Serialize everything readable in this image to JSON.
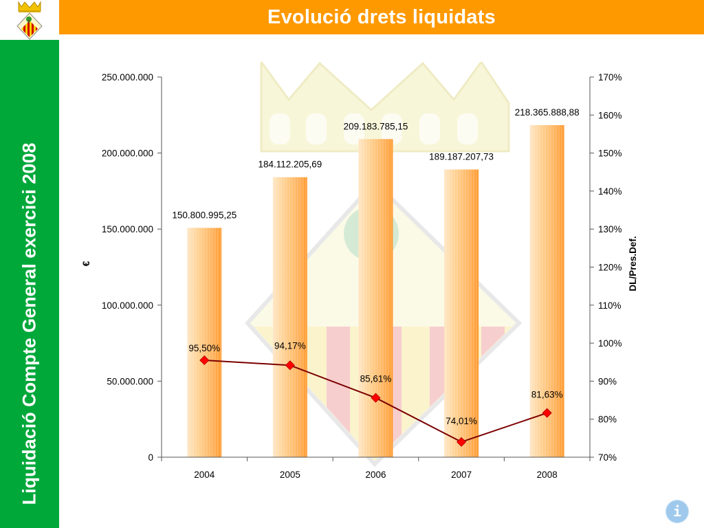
{
  "header": {
    "title": "Evolució drets liquidats"
  },
  "sidebar": {
    "text": "Liquidació Compte General exercici 2008"
  },
  "info_button": {
    "label": "i"
  },
  "colors": {
    "header": "#ff9900",
    "sidebar": "#00a83a",
    "bar_light": "#ffe2b8",
    "bar_dark": "#ff9a2e",
    "line": "#7b0000",
    "marker": "#ff0000"
  },
  "icons": {
    "logo": "coat-of-arms-icon",
    "watermark": "coat-of-arms-watermark",
    "info": "info-icon"
  },
  "chart_data": {
    "type": "bar",
    "categories": [
      "2004",
      "2005",
      "2006",
      "2007",
      "2008"
    ],
    "y_left": {
      "label": "€",
      "min": 0,
      "max": 250000000,
      "step": 50000000,
      "ticks": [
        "0",
        "50.000.000",
        "100.000.000",
        "150.000.000",
        "200.000.000",
        "250.000.000"
      ]
    },
    "y_right": {
      "label": "DL/Pres.Def.",
      "min": 70,
      "max": 170,
      "step": 10,
      "ticks": [
        "70%",
        "80%",
        "90%",
        "100%",
        "110%",
        "120%",
        "130%",
        "140%",
        "150%",
        "160%",
        "170%"
      ]
    },
    "series": [
      {
        "type": "bar",
        "axis": "left",
        "values": [
          150800995.25,
          184112205.69,
          209183785.15,
          189187207.73,
          218365888.88
        ],
        "labels": [
          "150.800.995,25",
          "184.112.205,69",
          "209.183.785,15",
          "189.187.207,73",
          "218.365.888,88"
        ]
      },
      {
        "type": "line",
        "axis": "right",
        "values": [
          95.5,
          94.17,
          85.61,
          74.01,
          81.63
        ],
        "labels": [
          "95,50%",
          "94,17%",
          "85,61%",
          "74,01%",
          "81,63%"
        ]
      }
    ],
    "grid": false,
    "legend": "none"
  }
}
